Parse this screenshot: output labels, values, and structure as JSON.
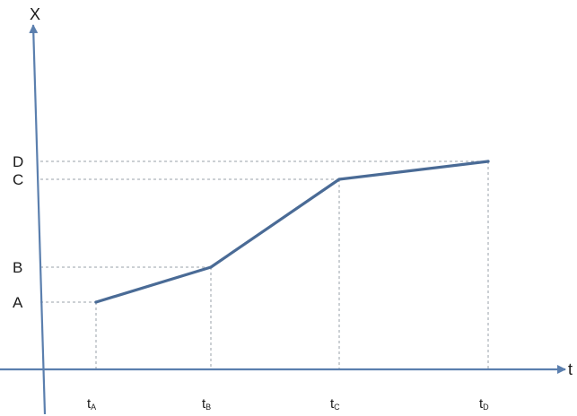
{
  "chart_data": {
    "type": "line",
    "title": "",
    "xlabel": "t",
    "ylabel": "X",
    "x_ticks": [
      {
        "base": "t",
        "sub": "A"
      },
      {
        "base": "t",
        "sub": "B"
      },
      {
        "base": "t",
        "sub": "C"
      },
      {
        "base": "t",
        "sub": "D"
      }
    ],
    "y_ticks": [
      "A",
      "B",
      "C",
      "D"
    ],
    "x": [
      "tA",
      "tB",
      "tC",
      "tD"
    ],
    "series": [
      {
        "values": [
          "A",
          "B",
          "C",
          "D"
        ]
      }
    ],
    "guide_lines": "dashed",
    "colors": {
      "line": "#4a6b96",
      "axis": "#5b7fae",
      "guide": "#9aa0a8",
      "text": "#1a1a1a"
    }
  }
}
